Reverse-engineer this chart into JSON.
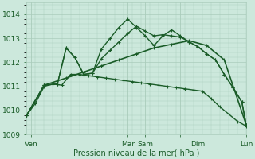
{
  "background_color": "#cce8dc",
  "grid_color": "#aaccbb",
  "line_color": "#1a5c28",
  "ylim": [
    1009.0,
    1014.5
  ],
  "yticks": [
    1009,
    1010,
    1011,
    1012,
    1013,
    1014
  ],
  "xlim": [
    0,
    100
  ],
  "xlabel": "Pression niveau de la mer( hPa )",
  "xtick_positions": [
    2,
    24,
    46,
    54,
    70,
    78,
    92,
    100
  ],
  "xtick_labels": [
    "Ven",
    "",
    "Mar",
    "Sam",
    "",
    "Dim",
    "",
    "Lun"
  ],
  "vline_positions": [
    2,
    24,
    46,
    54,
    70,
    78,
    92,
    100
  ],
  "series": [
    {
      "x": [
        0,
        4,
        8,
        12,
        16,
        20,
        24,
        28,
        32,
        36,
        40,
        44,
        48,
        52,
        56,
        60,
        64,
        68,
        72,
        76,
        80,
        84,
        88,
        92,
        96,
        100
      ],
      "y": [
        1009.8,
        1010.3,
        1011.0,
        1011.1,
        1011.05,
        1011.5,
        1011.5,
        1011.45,
        1011.4,
        1011.35,
        1011.3,
        1011.25,
        1011.2,
        1011.15,
        1011.1,
        1011.05,
        1011.0,
        1010.95,
        1010.9,
        1010.85,
        1010.8,
        1010.5,
        1010.15,
        1009.85,
        1009.55,
        1009.35
      ],
      "lw": 1.0
    },
    {
      "x": [
        0,
        8,
        14,
        18,
        22,
        26,
        30,
        34,
        38,
        42,
        46,
        50,
        54,
        58,
        62,
        66,
        70,
        74,
        78,
        82,
        86,
        90,
        94,
        98,
        100
      ],
      "y": [
        1009.8,
        1011.05,
        1011.1,
        1012.6,
        1012.2,
        1011.5,
        1011.55,
        1012.15,
        1012.5,
        1012.85,
        1013.2,
        1013.5,
        1013.3,
        1013.1,
        1013.15,
        1013.1,
        1013.05,
        1012.85,
        1012.65,
        1012.35,
        1012.1,
        1011.5,
        1010.95,
        1010.35,
        1009.4
      ],
      "lw": 1.0
    },
    {
      "x": [
        0,
        8,
        14,
        18,
        22,
        26,
        30,
        34,
        38,
        42,
        46,
        50,
        54,
        58,
        62,
        66,
        70,
        74,
        78,
        82,
        86,
        90,
        94,
        98,
        100
      ],
      "y": [
        1009.8,
        1011.05,
        1011.1,
        1012.6,
        1012.2,
        1011.5,
        1011.55,
        1012.55,
        1013.0,
        1013.45,
        1013.8,
        1013.45,
        1013.1,
        1012.7,
        1013.1,
        1013.35,
        1013.1,
        1012.85,
        1012.65,
        1012.35,
        1012.1,
        1011.5,
        1010.95,
        1010.35,
        1009.4
      ],
      "lw": 1.0
    },
    {
      "x": [
        0,
        8,
        18,
        26,
        34,
        42,
        50,
        58,
        66,
        74,
        82,
        90,
        100
      ],
      "y": [
        1009.8,
        1011.05,
        1011.35,
        1011.6,
        1011.85,
        1012.1,
        1012.35,
        1012.6,
        1012.75,
        1012.9,
        1012.7,
        1012.1,
        1009.4
      ],
      "lw": 1.2
    }
  ]
}
